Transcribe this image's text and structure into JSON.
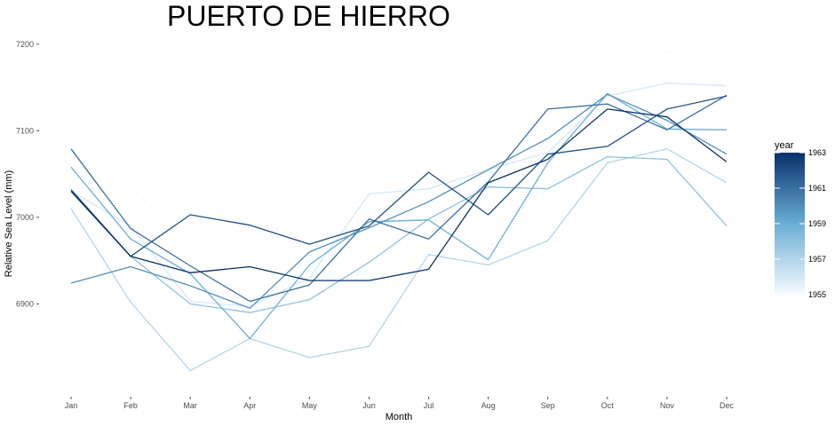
{
  "chart_data": {
    "type": "line",
    "title": "PUERTO DE HIERRO",
    "xlabel": "Month",
    "ylabel": "Relative Sea Level (mm)",
    "categories": [
      "Jan",
      "Feb",
      "Mar",
      "Apr",
      "May",
      "Jun",
      "Jul",
      "Aug",
      "Sep",
      "Oct",
      "Nov",
      "Dec"
    ],
    "ylim": [
      6800,
      7210
    ],
    "yticks": [
      6900,
      7000,
      7100,
      7200
    ],
    "ytick_labels": [
      "6900",
      "7000",
      "7100",
      "7200"
    ],
    "grid": false,
    "legend": {
      "title": "year",
      "position": "right",
      "type": "colorbar",
      "range": [
        1955,
        1963
      ],
      "tick_labels": [
        "1963",
        "1961",
        "1959",
        "1957",
        "1955"
      ],
      "tick_values": [
        1963,
        1961,
        1959,
        1957,
        1955
      ],
      "color_low": "#f7fbff",
      "color_high": "#08306b"
    },
    "series": [
      {
        "year": 1955,
        "values": [
          7033,
          7033,
          6975,
          6900,
          6940,
          6985,
          7000,
          7025,
          7090,
          7130,
          7193,
          7150
        ]
      },
      {
        "year": 1956,
        "values": [
          7030,
          6990,
          6903,
          6897,
          6930,
          7027,
          7033,
          7055,
          7075,
          7140,
          7155,
          7152
        ]
      },
      {
        "year": 1957,
        "values": [
          7010,
          6902,
          6823,
          6860,
          6838,
          6851,
          6957,
          6945,
          6973,
          7063,
          7079,
          7040
        ]
      },
      {
        "year": 1958,
        "values": [
          7030,
          6955,
          6900,
          6890,
          6905,
          6948,
          6998,
          7035,
          7033,
          7070,
          7067,
          6990
        ]
      },
      {
        "year": 1959,
        "values": [
          7058,
          6975,
          6935,
          6860,
          6945,
          6995,
          6997,
          6951,
          7063,
          7143,
          7102,
          7101
        ]
      },
      {
        "year": 1960,
        "values": [
          6924,
          6943,
          6921,
          6895,
          6960,
          6988,
          7018,
          7055,
          7091,
          7142,
          7112,
          7073
        ]
      },
      {
        "year": 1961,
        "values": [
          7079,
          6987,
          6944,
          6903,
          6922,
          6998,
          6975,
          7041,
          7125,
          7131,
          7101,
          7141
        ]
      },
      {
        "year": 1962,
        "values": [
          7032,
          6955,
          7003,
          6991,
          6969,
          6990,
          7052,
          7003,
          7073,
          7082,
          7125,
          7140
        ]
      },
      {
        "year": 1963,
        "values": [
          7030,
          6955,
          6936,
          6943,
          6927,
          6927,
          6940,
          7040,
          7067,
          7125,
          7116,
          7064
        ]
      }
    ]
  }
}
